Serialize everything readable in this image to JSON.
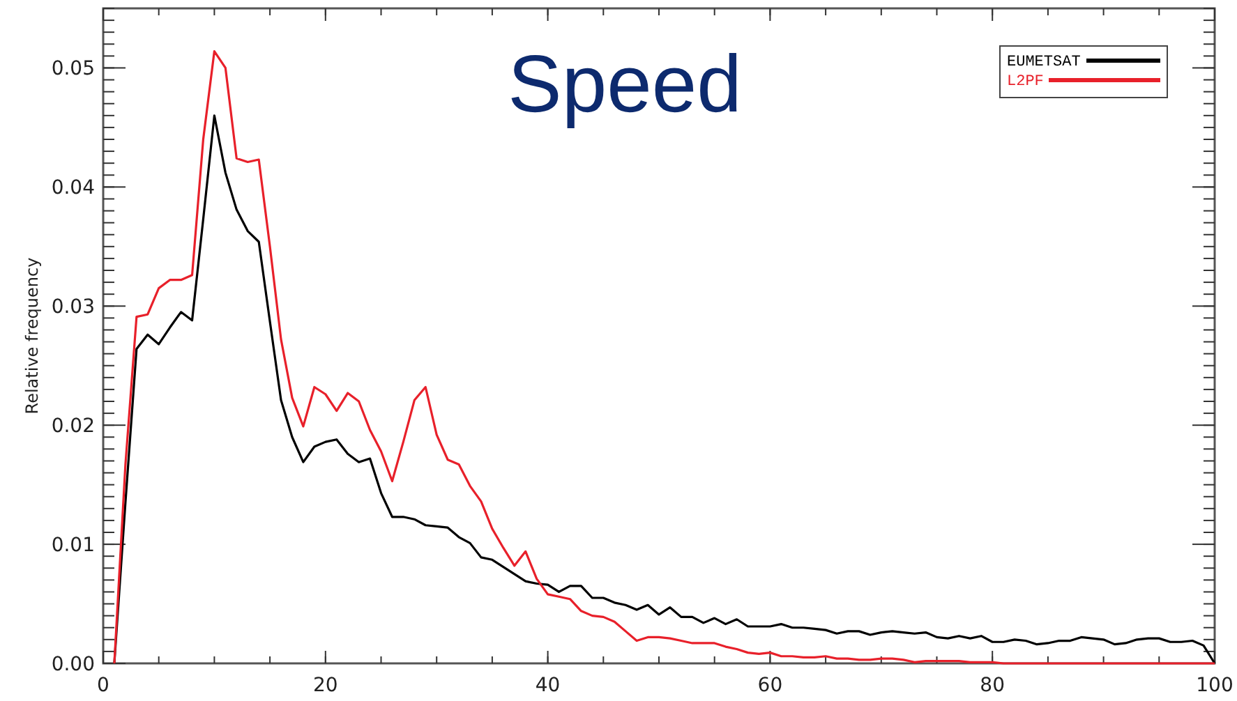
{
  "chart_data": {
    "type": "line",
    "title": "Speed",
    "ylabel": "Relative frequency",
    "x": [
      1,
      2,
      3,
      4,
      5,
      6,
      7,
      8,
      9,
      10,
      11,
      12,
      13,
      14,
      15,
      16,
      17,
      18,
      19,
      20,
      21,
      22,
      23,
      24,
      25,
      26,
      27,
      28,
      29,
      30,
      31,
      32,
      33,
      34,
      35,
      36,
      37,
      38,
      39,
      40,
      41,
      42,
      43,
      44,
      45,
      46,
      47,
      48,
      49,
      50,
      51,
      52,
      53,
      54,
      55,
      56,
      57,
      58,
      59,
      60,
      61,
      62,
      63,
      64,
      65,
      66,
      67,
      68,
      69,
      70,
      71,
      72,
      73,
      74,
      75,
      76,
      77,
      78,
      79,
      80,
      81,
      82,
      83,
      84,
      85,
      86,
      87,
      88,
      89,
      90,
      91,
      92,
      93,
      94,
      95,
      96,
      97,
      98,
      99,
      100
    ],
    "series": [
      {
        "name": "EUMETSAT",
        "color": "#000000",
        "values": [
          0,
          0.0135,
          0.0264,
          0.0276,
          0.0268,
          0.0282,
          0.0295,
          0.0288,
          0.0373,
          0.046,
          0.0412,
          0.0381,
          0.0363,
          0.0354,
          0.0287,
          0.0221,
          0.019,
          0.0169,
          0.0182,
          0.0186,
          0.0188,
          0.0176,
          0.0169,
          0.0172,
          0.0143,
          0.0123,
          0.0123,
          0.0121,
          0.0116,
          0.0115,
          0.0114,
          0.0106,
          0.0101,
          0.0089,
          0.0087,
          0.0081,
          0.0075,
          0.0069,
          0.0067,
          0.0066,
          0.006,
          0.0065,
          0.0065,
          0.0055,
          0.0055,
          0.0051,
          0.0049,
          0.0045,
          0.0049,
          0.0041,
          0.0047,
          0.0039,
          0.0039,
          0.0034,
          0.0038,
          0.0033,
          0.0037,
          0.0031,
          0.0031,
          0.0031,
          0.0033,
          0.003,
          0.003,
          0.0029,
          0.0028,
          0.0025,
          0.0027,
          0.0027,
          0.0024,
          0.0026,
          0.0027,
          0.0026,
          0.0025,
          0.0026,
          0.0022,
          0.0021,
          0.0023,
          0.0021,
          0.0023,
          0.0018,
          0.0018,
          0.002,
          0.0019,
          0.0016,
          0.0017,
          0.0019,
          0.0019,
          0.0022,
          0.0021,
          0.002,
          0.0016,
          0.0017,
          0.002,
          0.0021,
          0.0021,
          0.0018,
          0.0018,
          0.0019,
          0.0015,
          0
        ]
      },
      {
        "name": "L2PF",
        "color": "#e8202a",
        "values": [
          0,
          0.0167,
          0.0291,
          0.0293,
          0.0315,
          0.0322,
          0.0322,
          0.0326,
          0.044,
          0.0514,
          0.05,
          0.0424,
          0.0421,
          0.0423,
          0.035,
          0.0272,
          0.0223,
          0.0199,
          0.0232,
          0.0226,
          0.0212,
          0.0227,
          0.022,
          0.0196,
          0.0178,
          0.0153,
          0.0186,
          0.0221,
          0.0232,
          0.0192,
          0.0171,
          0.0167,
          0.0149,
          0.0136,
          0.0113,
          0.0097,
          0.0082,
          0.0094,
          0.0071,
          0.0058,
          0.0056,
          0.0054,
          0.0044,
          0.004,
          0.0039,
          0.0035,
          0.0027,
          0.0019,
          0.0022,
          0.0022,
          0.0021,
          0.0019,
          0.0017,
          0.0017,
          0.0017,
          0.0014,
          0.0012,
          0.0009,
          0.0008,
          0.0009,
          0.0006,
          0.0006,
          0.0005,
          0.0005,
          0.0006,
          0.0004,
          0.0004,
          0.0003,
          0.0003,
          0.0004,
          0.0004,
          0.0003,
          0.0001,
          0.0002,
          0.0002,
          0.0002,
          0.0002,
          0.0001,
          0.0001,
          0.0001,
          0,
          0,
          0,
          0,
          0,
          0,
          0,
          0,
          0,
          0,
          0,
          0,
          0,
          0,
          0,
          0,
          0,
          0,
          0,
          0
        ]
      }
    ],
    "xlim": [
      0,
      100
    ],
    "xticks": [
      0,
      20,
      40,
      60,
      80,
      100
    ],
    "ylim": [
      0,
      0.055
    ],
    "yticks": [
      {
        "value": 0,
        "label": "0.00"
      },
      {
        "value": 0.01,
        "label": "0.01"
      },
      {
        "value": 0.02,
        "label": "0.02"
      },
      {
        "value": 0.03,
        "label": "0.03"
      },
      {
        "value": 0.04,
        "label": "0.04"
      },
      {
        "value": 0.05,
        "label": "0.05"
      }
    ],
    "legend": "top right",
    "line_style": "solid",
    "marker": "none"
  }
}
